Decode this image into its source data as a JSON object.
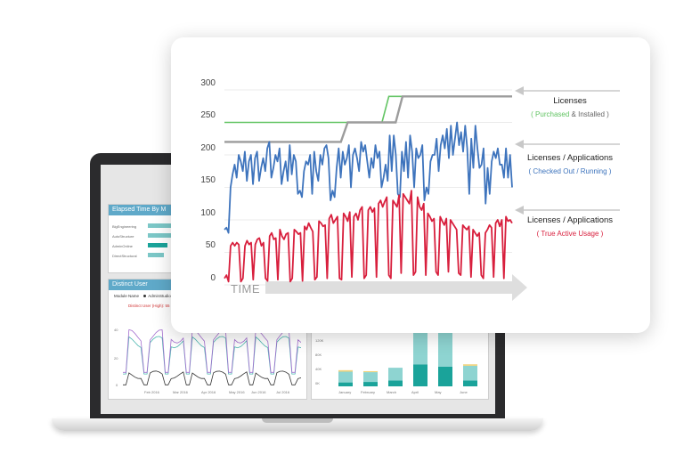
{
  "chart_data": {
    "type": "line",
    "ylim": [
      0,
      300
    ],
    "yticks": [
      0,
      50,
      100,
      150,
      200,
      250,
      300
    ],
    "xlabel": "TIME",
    "series": [
      {
        "legend_title": "Licenses",
        "legend_sub_parts": [
          "( Purchased",
          "&",
          "Installed )"
        ],
        "values_purchased": [
          250,
          250,
          250,
          250,
          250,
          250,
          250,
          250,
          250,
          250,
          250,
          250,
          290,
          290,
          290,
          290,
          290,
          290,
          290,
          290,
          290,
          290
        ],
        "values_installed": [
          220,
          220,
          220,
          220,
          220,
          220,
          220,
          220,
          220,
          250,
          250,
          250,
          250,
          290,
          290,
          290,
          290,
          290,
          290,
          290,
          290,
          290
        ]
      },
      {
        "legend_title": "Licenses / Applications",
        "legend_sub": "( Checked Out / Running )",
        "values": [
          85,
          88,
          80,
          150,
          170,
          185,
          165,
          200,
          190,
          175,
          205,
          160,
          190,
          200,
          155,
          195,
          205,
          160,
          180,
          195,
          175,
          210,
          220,
          165,
          180,
          200,
          190,
          210,
          155,
          175,
          190,
          160,
          215,
          170,
          200,
          190,
          140,
          145,
          135,
          175,
          190,
          185,
          200,
          140,
          205,
          175,
          160,
          200,
          185,
          210,
          215,
          195,
          130,
          145,
          135,
          180,
          210,
          165,
          205,
          185,
          195,
          215,
          150,
          200,
          210,
          195,
          175,
          220,
          205,
          215,
          190,
          165,
          195,
          180,
          215,
          195,
          205,
          150,
          165,
          185,
          160,
          230,
          175,
          230,
          200,
          140,
          135,
          205,
          175,
          220,
          165,
          230,
          205,
          150,
          210,
          195,
          200,
          215,
          130,
          150,
          140,
          190,
          200,
          200,
          225,
          175,
          215,
          230,
          210,
          240,
          195,
          245,
          200,
          225,
          250,
          215,
          235,
          205,
          245,
          210,
          140,
          225,
          180,
          245,
          210,
          180,
          185,
          210,
          125,
          180,
          140,
          190,
          205,
          195,
          210,
          185,
          185,
          165,
          210,
          165,
          200,
          150
        ]
      },
      {
        "legend_title": "Licenses / Applications",
        "legend_sub": "( True Active Usage )",
        "values": [
          10,
          15,
          5,
          60,
          65,
          60,
          65,
          62,
          5,
          10,
          60,
          68,
          62,
          65,
          8,
          62,
          70,
          72,
          60,
          65,
          10,
          6,
          75,
          80,
          70,
          72,
          8,
          85,
          75,
          70,
          78,
          80,
          5,
          10,
          85,
          82,
          78,
          80,
          6,
          90,
          85,
          95,
          88,
          82,
          8,
          12,
          98,
          95,
          90,
          92,
          10,
          102,
          108,
          95,
          100,
          105,
          10,
          8,
          110,
          105,
          98,
          112,
          12,
          105,
          110,
          100,
          115,
          120,
          10,
          15,
          115,
          120,
          112,
          118,
          12,
          125,
          130,
          120,
          128,
          135,
          15,
          10,
          130,
          125,
          120,
          138,
          18,
          140,
          135,
          130,
          125,
          145,
          15,
          20,
          135,
          120,
          115,
          125,
          15,
          110,
          105,
          98,
          102,
          20,
          15,
          105,
          98,
          92,
          102,
          20,
          100,
          95,
          90,
          85,
          18,
          15,
          92,
          88,
          85,
          90,
          12,
          85,
          80,
          75,
          80,
          15,
          10,
          80,
          85,
          92,
          88,
          12,
          95,
          100,
          90,
          100,
          10,
          105,
          98,
          100,
          95
        ]
      }
    ]
  },
  "dashboard": {
    "panel1_title": "Elapsed Time By M",
    "panel1_rows": [
      "BigEngineering",
      "AutoStructure",
      "AdminOnline",
      "DirectStructural"
    ],
    "panel2_title": "Distinct User",
    "panel2_legend": "Module Name",
    "panel2_legend_item": "AdminStudio",
    "panel2_note": "Distinct User (High): 55",
    "panel2_yticks": [
      "40",
      "20",
      "0"
    ],
    "panel2_months": [
      "Feb 2016",
      "Mar 2016",
      "Apr 2016",
      "May 2016",
      "Jun 2016",
      "Jul 2016"
    ],
    "panel3_yticks": [
      "120K",
      "80K",
      "40K",
      "0K"
    ],
    "panel3_months": [
      "January",
      "February",
      "March",
      "April",
      "May",
      "June"
    ],
    "panel3_values": [
      {
        "teal": 8,
        "light": 22,
        "yellow": 3
      },
      {
        "teal": 9,
        "light": 20,
        "yellow": 2
      },
      {
        "teal": 12,
        "light": 26,
        "yellow": 0
      },
      {
        "teal": 45,
        "light": 80,
        "yellow": 0
      },
      {
        "teal": 40,
        "light": 75,
        "yellow": 0
      },
      {
        "teal": 12,
        "light": 30,
        "yellow": 3
      }
    ],
    "colors": {
      "teal": "#1aa39a",
      "light": "#8ed4d1",
      "yellow": "#f1d27a",
      "purple": "#a46fcf",
      "header": "#5fa9c9"
    }
  },
  "colors": {
    "purchased": "#62c463",
    "installed": "#9c9c9c",
    "checked_out": "#3e74bd",
    "active": "#d81f3d",
    "arrow": "#c8c8c8",
    "axis": "#cccccc"
  }
}
